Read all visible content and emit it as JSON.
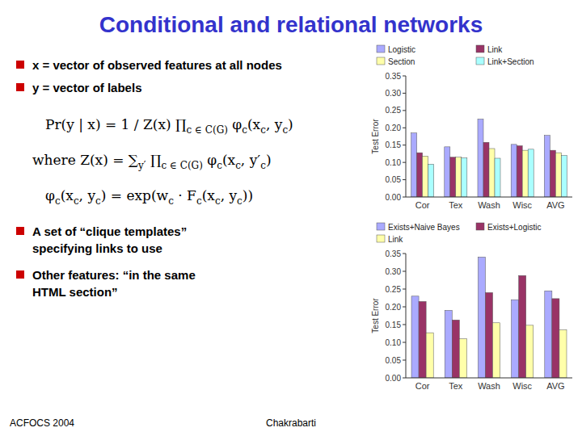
{
  "title": {
    "text": "Conditional and relational networks",
    "color": "#3333CC"
  },
  "bullets": {
    "color": "#CC0000",
    "items": [
      [
        "x = vector of observed features at all nodes"
      ],
      [
        "y = vector of labels"
      ],
      [
        "A set of “clique templates”",
        "specifying links to use"
      ],
      [
        "Other features: “in the same",
        "HTML section”"
      ]
    ]
  },
  "formulas": [
    [
      "Pr(y | x) = 1 / Z(x) ∏",
      "c ∈ C(G)",
      " φ",
      "c",
      "(x",
      "c",
      ", y",
      "c",
      ")"
    ],
    [
      "where Z(x) = ∑",
      "y′",
      " ∏",
      "c ∈ C(G)",
      " φ",
      "c",
      "(x",
      "c",
      ", y′",
      "c",
      ")"
    ],
    [
      "φ",
      "c",
      "(x",
      "c",
      ", y",
      "c",
      ") = exp(w",
      "c",
      " · F",
      "c",
      "(x",
      "c",
      ", y",
      "c",
      "))"
    ]
  ],
  "footer": [
    "ACFOCS 2004",
    "Chakrabarti"
  ],
  "chart_data": [
    {
      "type": "bar",
      "categories": [
        "Cor",
        "Tex",
        "Wash",
        "Wisc",
        "AVG"
      ],
      "series": [
        {
          "name": "Logistic",
          "color": "#AAAAFF",
          "values": [
            0.185,
            0.145,
            0.225,
            0.152,
            0.178
          ]
        },
        {
          "name": "Link",
          "color": "#993366",
          "values": [
            0.128,
            0.115,
            0.158,
            0.148,
            0.135
          ]
        },
        {
          "name": "Section",
          "color": "#FFFFAA",
          "values": [
            0.118,
            0.115,
            0.14,
            0.135,
            0.128
          ]
        },
        {
          "name": "Link+Section",
          "color": "#AAFFFF",
          "values": [
            0.095,
            0.113,
            0.112,
            0.138,
            0.12
          ]
        }
      ],
      "ylabel": "Test Error",
      "ylim": [
        0,
        0.35
      ],
      "yticks": [
        {
          "value": 0,
          "label": "0.00"
        },
        0.05,
        {
          "value": 0.1,
          "label": "0.10"
        },
        0.15,
        {
          "value": 0.2,
          "label": "0.20"
        },
        0.25,
        {
          "value": 0.3,
          "label": "0.30"
        },
        0.35
      ],
      "grid": false,
      "legend": "top"
    },
    {
      "type": "bar",
      "categories": [
        "Cor",
        "Tex",
        "Wash",
        "Wisc",
        "AVG"
      ],
      "series": [
        {
          "name": "Exists+Naive Bayes",
          "color": "#AAAAFF",
          "values": [
            0.23,
            0.19,
            0.34,
            0.22,
            0.245
          ]
        },
        {
          "name": "Exists+Logistic",
          "color": "#993366",
          "values": [
            0.215,
            0.163,
            0.24,
            0.288,
            0.223
          ]
        },
        {
          "name": "Link",
          "color": "#FFFFAA",
          "values": [
            0.127,
            0.11,
            0.155,
            0.148,
            0.135
          ]
        }
      ],
      "ylabel": "Test Error",
      "ylim": [
        0,
        0.35
      ],
      "yticks": [
        {
          "value": 0,
          "label": "0.00"
        },
        0.05,
        {
          "value": 0.1,
          "label": "0.10"
        },
        0.15,
        {
          "value": 0.2,
          "label": "0.20"
        },
        0.25,
        {
          "value": 0.3,
          "label": "0.30"
        },
        0.35
      ],
      "grid": false,
      "legend": "top"
    }
  ]
}
